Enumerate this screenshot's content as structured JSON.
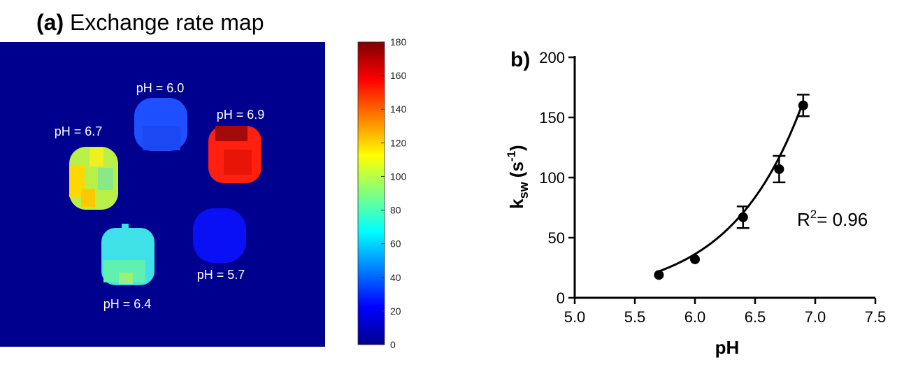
{
  "panel_a": {
    "label": "(a)",
    "title": "Exchange rate map",
    "colorbar": {
      "min": 0,
      "max": 180,
      "ticks": [
        "0",
        "20",
        "40",
        "60",
        "80",
        "100",
        "120",
        "140",
        "160",
        "180"
      ],
      "colormap": "jet"
    },
    "map_background": "#00008f",
    "samples": [
      {
        "label": "pH = 6.0",
        "value": 30
      },
      {
        "label": "pH = 6.9",
        "value": 160
      },
      {
        "label": "pH = 6.7",
        "value": 105
      },
      {
        "label": "pH = 6.4",
        "value": 65
      },
      {
        "label": "pH = 5.7",
        "value": 15
      }
    ]
  },
  "chart_data": {
    "type": "scatter",
    "panel_label": "b)",
    "xlabel": "pH",
    "ylabel_main": "k",
    "ylabel_sub": "sw",
    "ylabel_unit_open": "(s",
    "ylabel_unit_sup": "-1",
    "ylabel_unit_close": ")",
    "xlim": [
      5.0,
      7.5
    ],
    "ylim": [
      0,
      200
    ],
    "xticks": [
      "5.0",
      "5.5",
      "6.0",
      "6.5",
      "7.0",
      "7.5"
    ],
    "yticks": [
      "0",
      "50",
      "100",
      "150",
      "200"
    ],
    "points": [
      {
        "x": 5.7,
        "y": 19,
        "err": 0
      },
      {
        "x": 6.0,
        "y": 32,
        "err": 0
      },
      {
        "x": 6.4,
        "y": 67,
        "err": 9
      },
      {
        "x": 6.7,
        "y": 107,
        "err": 11
      },
      {
        "x": 6.9,
        "y": 160,
        "err": 9
      }
    ],
    "fit": {
      "type": "exponential",
      "a": 0.00139,
      "b": 1.69,
      "x_range": [
        5.7,
        6.9
      ]
    },
    "annotation": {
      "r_prefix": "R",
      "r_sup": "2",
      "r_value": "= 0.96"
    },
    "grid": false
  }
}
